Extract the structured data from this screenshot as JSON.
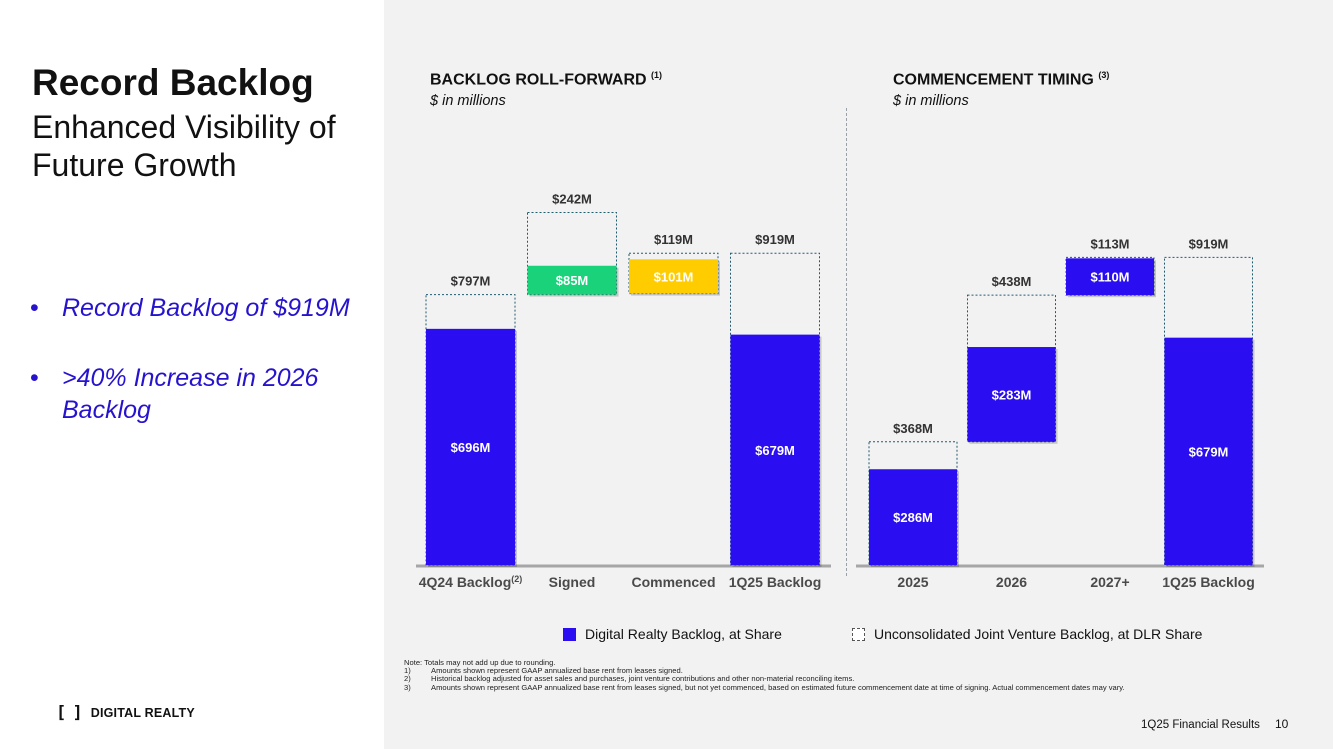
{
  "page": {
    "title": "Record Backlog",
    "subtitle": "Enhanced Visibility of Future Growth",
    "bullets": [
      "Record Backlog of $919M",
      ">40% Increase in 2026 Backlog"
    ],
    "logo_text": "DIGITAL REALTY",
    "logo_mark": "[ ]",
    "footer": "1Q25 Financial Results",
    "page_number": "10"
  },
  "colors": {
    "blue": "#2a0df0",
    "green": "#19d27a",
    "yellow": "#ffcc00",
    "bullet": "#2613ce"
  },
  "legend": {
    "solid": "Digital Realty Backlog, at Share",
    "dashed": "Unconsolidated Joint Venture Backlog, at DLR Share"
  },
  "notes": {
    "note": "Note:  Totals may not add up due to rounding.",
    "items": [
      "Amounts shown represent GAAP annualized base rent from leases signed.",
      "Historical backlog adjusted for asset sales and purchases, joint venture contributions and other non-material reconciling items.",
      "Amounts shown represent GAAP annualized base rent from leases signed, but not yet commenced, based on estimated future commencement date at time of signing. Actual commencement dates may vary."
    ],
    "numbers": [
      "1)",
      "2)",
      "3)"
    ]
  },
  "chart_data": [
    {
      "type": "bar",
      "subtype": "waterfall",
      "title": "BACKLOG ROLL-FORWARD",
      "title_footnote": "(1)",
      "subtitle": "$ in millions",
      "categories": [
        "4Q24 Backlog",
        "Signed",
        "Commenced",
        "1Q25 Backlog"
      ],
      "category_footnotes": [
        "(2)",
        "",
        "",
        ""
      ],
      "series": [
        {
          "name": "Digital Realty Backlog, at Share",
          "values": [
            696,
            85,
            101,
            679
          ],
          "labels": [
            "$696M",
            "$85M",
            "$101M",
            "$679M"
          ],
          "colors": [
            "#2a0df0",
            "#19d27a",
            "#ffcc00",
            "#2a0df0"
          ]
        },
        {
          "name": "Unconsolidated Joint Venture Backlog, at DLR Share",
          "values": [
            101,
            157,
            18,
            240
          ]
        }
      ],
      "totals": [
        797,
        242,
        119,
        919
      ],
      "total_labels": [
        "$797M",
        "$242M",
        "$119M",
        "$919M"
      ],
      "bases": [
        0,
        797,
        919,
        0
      ],
      "direction": [
        "up",
        "up",
        "down",
        "up"
      ],
      "ylim": [
        0,
        1120
      ]
    },
    {
      "type": "bar",
      "subtype": "waterfall",
      "title": "COMMENCEMENT TIMING",
      "title_footnote": "(3)",
      "subtitle": "$ in millions",
      "categories": [
        "2025",
        "2026",
        "2027+",
        "1Q25 Backlog"
      ],
      "category_footnotes": [
        "",
        "",
        "",
        ""
      ],
      "series": [
        {
          "name": "Digital Realty Backlog, at Share",
          "values": [
            286,
            283,
            110,
            679
          ],
          "labels": [
            "$286M",
            "$283M",
            "$110M",
            "$679M"
          ],
          "colors": [
            "#2a0df0",
            "#2a0df0",
            "#2a0df0",
            "#2a0df0"
          ]
        },
        {
          "name": "Unconsolidated Joint Venture Backlog, at DLR Share",
          "values": [
            82,
            155,
            3,
            240
          ]
        }
      ],
      "totals": [
        368,
        438,
        113,
        919
      ],
      "total_labels": [
        "$368M",
        "$438M",
        "$113M",
        "$919M"
      ],
      "bases": [
        0,
        368,
        806,
        0
      ],
      "direction": [
        "up",
        "up",
        "up",
        "up"
      ],
      "ylim": [
        0,
        1135
      ]
    }
  ]
}
